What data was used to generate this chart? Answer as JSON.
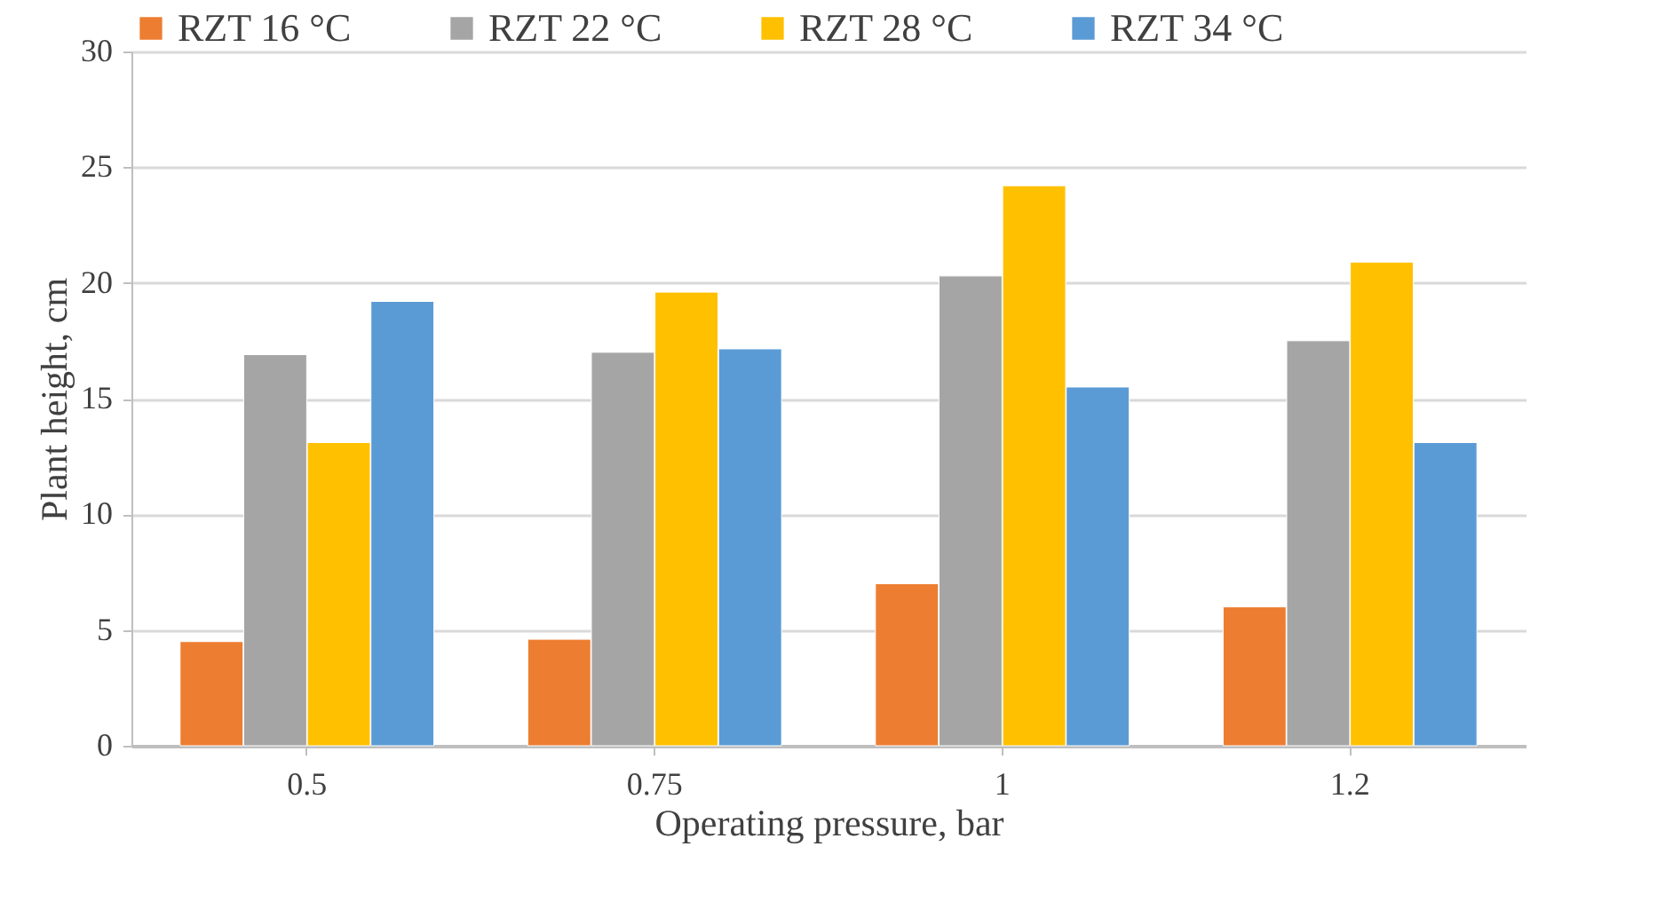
{
  "chart_data": {
    "type": "bar",
    "xlabel": "Operating pressure, bar",
    "ylabel": "Plant height, cm",
    "categories": [
      "0.5",
      "0.75",
      "1",
      "1.2"
    ],
    "series": [
      {
        "name": "RZT 16 °C",
        "color": "#ed7d31",
        "values": [
          4.5,
          4.6,
          7.0,
          6.0
        ]
      },
      {
        "name": "RZT 22 °C",
        "color": "#a5a5a5",
        "values": [
          16.9,
          17.0,
          20.3,
          17.5
        ]
      },
      {
        "name": "RZT 28 °C",
        "color": "#ffc000",
        "values": [
          13.1,
          19.6,
          24.2,
          20.9
        ]
      },
      {
        "name": "RZT 34  °C",
        "color": "#5b9bd5",
        "values": [
          19.2,
          17.15,
          15.5,
          13.1
        ]
      }
    ],
    "ylim": [
      0,
      30
    ],
    "yticks": [
      0,
      5,
      10,
      15,
      20,
      25,
      30
    ],
    "grid": "y",
    "legend": "top"
  }
}
